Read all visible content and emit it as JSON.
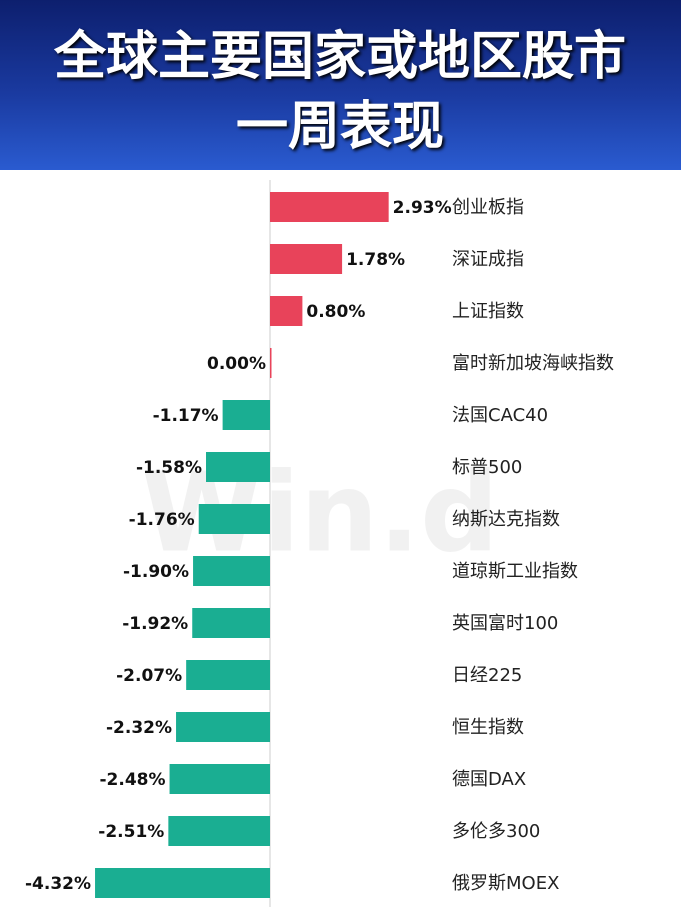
{
  "chart_data": {
    "type": "barh",
    "title": "全球主要国家或地区股市一周表现",
    "watermark": "Win.d",
    "categories": [
      "创业板指",
      "深证成指",
      "上证指数",
      "富时新加坡海峡指数",
      "法国CAC40",
      "标普500",
      "纳斯达克指数",
      "道琼斯工业指数",
      "英国富时100",
      "日经225",
      "恒生指数",
      "德国DAX",
      "多伦多300",
      "俄罗斯MOEX"
    ],
    "values": [
      2.93,
      1.78,
      0.8,
      0.0,
      -1.17,
      -1.58,
      -1.76,
      -1.9,
      -1.92,
      -2.07,
      -2.32,
      -2.48,
      -2.51,
      -4.32
    ],
    "value_labels": [
      "2.93%",
      "1.78%",
      "0.80%",
      "0.00%",
      "-1.17%",
      "-1.58%",
      "-1.76%",
      "-1.90%",
      "-1.92%",
      "-2.07%",
      "-2.32%",
      "-2.48%",
      "-2.51%",
      "-4.32%"
    ],
    "xlim": [
      -5,
      3.5
    ],
    "positive_color": "#e8435a",
    "negative_color": "#1aae92"
  }
}
